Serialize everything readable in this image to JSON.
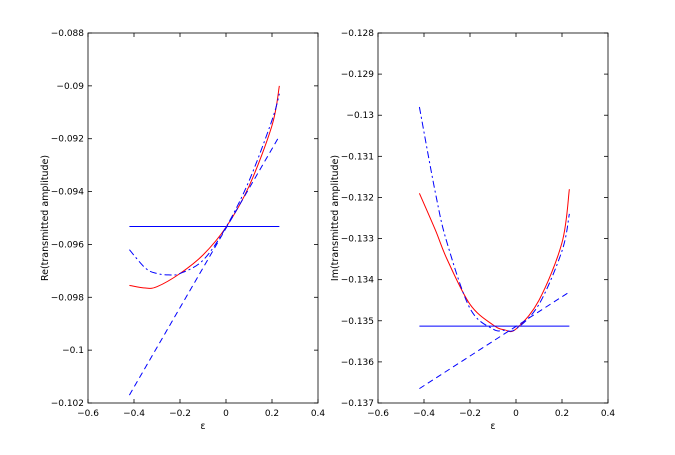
{
  "chart_data": [
    {
      "type": "line",
      "xlabel": "ε",
      "ylabel": "Re(transmitted amplitude)",
      "xlim": [
        -0.6,
        0.4
      ],
      "ylim": [
        -0.102,
        -0.088
      ],
      "xticks": [
        "−0.6",
        "−0.4",
        "−0.2",
        "0",
        "0.2",
        "0.4"
      ],
      "yticks": [
        "−0.102",
        "−0.1",
        "−0.098",
        "−0.096",
        "−0.094",
        "−0.092",
        "−0.09",
        "−0.088"
      ],
      "grid": false,
      "series": [
        {
          "color": "#ff0000",
          "style": "solid",
          "x": [
            -0.42,
            -0.35,
            -0.3,
            -0.2,
            -0.1,
            0,
            0.1,
            0.2,
            0.232
          ],
          "y": [
            -0.09755,
            -0.09765,
            -0.0976,
            -0.0971,
            -0.0964,
            -0.09535,
            -0.0938,
            -0.0915,
            -0.09
          ]
        },
        {
          "color": "#0000ff",
          "style": "dashdot",
          "x": [
            -0.42,
            -0.35,
            -0.3,
            -0.25,
            -0.2,
            -0.1,
            0,
            0.1,
            0.2,
            0.232
          ],
          "y": [
            -0.0962,
            -0.0969,
            -0.0971,
            -0.09715,
            -0.0971,
            -0.0966,
            -0.09535,
            -0.0936,
            -0.0913,
            -0.0903
          ]
        },
        {
          "color": "#0000ff",
          "style": "dashed",
          "x": [
            -0.42,
            0.232
          ],
          "y": [
            -0.1017,
            -0.0919
          ]
        },
        {
          "color": "#0000ff",
          "style": "solid",
          "x": [
            -0.42,
            0.232
          ],
          "y": [
            -0.09532,
            -0.09532
          ]
        }
      ]
    },
    {
      "type": "line",
      "xlabel": "ε",
      "ylabel": "Im(transmitted amplitude)",
      "xlim": [
        -0.6,
        0.4
      ],
      "ylim": [
        -0.137,
        -0.128
      ],
      "xticks": [
        "−0.6",
        "−0.4",
        "−0.2",
        "0",
        "0.2",
        "0.4"
      ],
      "yticks": [
        "−0.137",
        "−0.136",
        "−0.135",
        "−0.134",
        "−0.133",
        "−0.132",
        "−0.131",
        "−0.13",
        "−0.129",
        "−0.128"
      ],
      "grid": false,
      "series": [
        {
          "color": "#ff0000",
          "style": "solid",
          "x": [
            -0.42,
            -0.35,
            -0.3,
            -0.2,
            -0.1,
            -0.05,
            0,
            0.1,
            0.2,
            0.232
          ],
          "y": [
            -0.1319,
            -0.1328,
            -0.1335,
            -0.1346,
            -0.1351,
            -0.13522,
            -0.1352,
            -0.1345,
            -0.1331,
            -0.1318
          ]
        },
        {
          "color": "#0000ff",
          "style": "dashdot",
          "x": [
            -0.42,
            -0.35,
            -0.3,
            -0.2,
            -0.1,
            -0.05,
            0,
            0.1,
            0.2,
            0.232
          ],
          "y": [
            -0.1298,
            -0.1319,
            -0.1331,
            -0.1347,
            -0.1352,
            -0.13523,
            -0.1352,
            -0.1346,
            -0.1333,
            -0.1324
          ]
        },
        {
          "color": "#0000ff",
          "style": "dashed",
          "x": [
            -0.42,
            0.232
          ],
          "y": [
            -0.13665,
            -0.1343
          ]
        },
        {
          "color": "#0000ff",
          "style": "solid",
          "x": [
            -0.42,
            0.232
          ],
          "y": [
            -0.13513,
            -0.13513
          ]
        }
      ]
    }
  ]
}
